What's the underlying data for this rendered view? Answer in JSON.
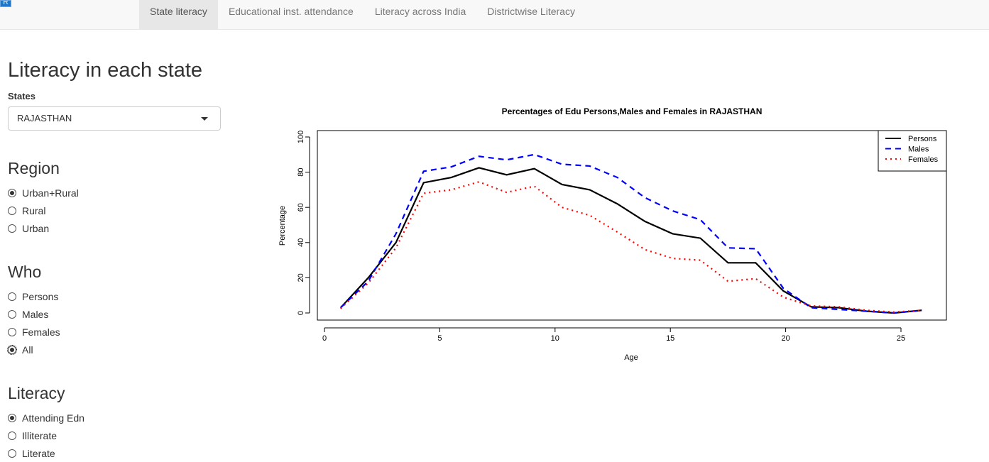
{
  "nav": {
    "logo": "R",
    "tabs": [
      "State literacy",
      "Educational inst. attendance",
      "Literacy across India",
      "Districtwise Literacy"
    ]
  },
  "sidebar": {
    "title": "Literacy in each state",
    "states_label": "States",
    "states_value": "RAJASTHAN",
    "region_title": "Region",
    "region_options": [
      "Urban+Rural",
      "Rural",
      "Urban"
    ],
    "region_selected": "Urban+Rural",
    "who_title": "Who",
    "who_options": [
      "Persons",
      "Males",
      "Females",
      "All"
    ],
    "who_selected": "All",
    "literacy_title": "Literacy",
    "literacy_options": [
      "Attending Edn",
      "Illiterate",
      "Literate"
    ],
    "literacy_selected": "Attending Edn"
  },
  "chart_data": {
    "type": "line",
    "title": "Percentages of Edu Persons,Males and Females in RAJASTHAN",
    "xlabel": "Age",
    "ylabel": "Percentage",
    "xlim": [
      0,
      26
    ],
    "ylim": [
      0,
      100
    ],
    "xticks": [
      0,
      5,
      10,
      15,
      20,
      25
    ],
    "yticks": [
      0,
      20,
      40,
      60,
      80,
      100
    ],
    "legend_placement": "top-right",
    "x": [
      0.7,
      1.9,
      3.1,
      4.3,
      5.5,
      6.7,
      7.9,
      9.1,
      10.3,
      11.5,
      12.7,
      13.9,
      15.1,
      16.3,
      17.5,
      18.7,
      19.9,
      21.1,
      22.3,
      23.5,
      24.7,
      25.9
    ],
    "series": [
      {
        "name": "Persons",
        "color": "#000000",
        "dash": "",
        "values": [
          3,
          20,
          40,
          74,
          77,
          82.5,
          78.5,
          82,
          73,
          70,
          62,
          52,
          45,
          42.5,
          28.5,
          28.5,
          12.5,
          3.5,
          3,
          1,
          0,
          1.5
        ]
      },
      {
        "name": "Males",
        "color": "#0000ff",
        "dash": "8 6",
        "values": [
          3,
          18,
          45,
          80.5,
          83,
          89,
          87,
          90,
          84.5,
          83.5,
          77,
          65.5,
          58,
          53,
          37,
          36.5,
          14,
          3,
          2,
          1,
          0,
          1.5
        ]
      },
      {
        "name": "Females",
        "color": "#ff0000",
        "dash": "2 5",
        "values": [
          2.5,
          17,
          37,
          68,
          70,
          74.5,
          68.5,
          72,
          60,
          55.5,
          46,
          36,
          31,
          30,
          18,
          19.5,
          9,
          4,
          3.5,
          1.5,
          0.5,
          1.5
        ]
      }
    ]
  }
}
